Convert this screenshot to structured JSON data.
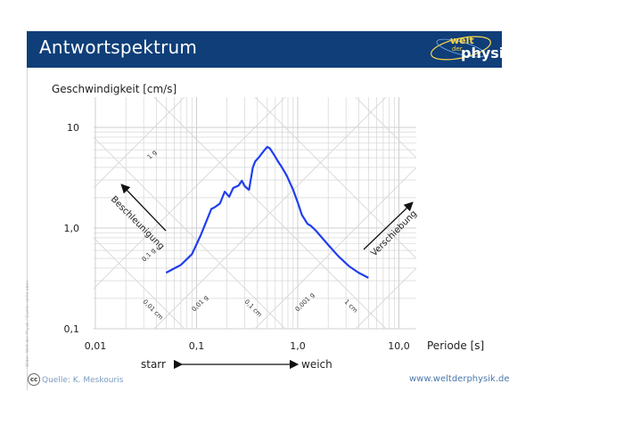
{
  "header": {
    "title": "Antwortspektrum",
    "logo_top": "welt",
    "logo_small": "der",
    "logo_main": "physik"
  },
  "footer": {
    "source": "Quelle: K. Meskouris",
    "website": "www.weltderphysik.de",
    "vertical_credit": "Bilder: Welt der Physik / Quelle: siehe oben",
    "cc_icon": "cc-icon"
  },
  "colors": {
    "banner": "#0f3e78",
    "curve": "#1f3ef0",
    "grid": "#cccccc"
  },
  "chart_data": {
    "type": "line",
    "scale": "tripartite log-log",
    "ylabel": "Geschwindigkeit [cm/s]",
    "xlabel": "Periode [s]",
    "xlim": [
      0.01,
      10
    ],
    "ylim": [
      0.1,
      10
    ],
    "x_ticks": [
      "0,01",
      "0,1",
      "1,0",
      "10,0"
    ],
    "y_ticks": [
      "0,1",
      "1,0",
      "10"
    ],
    "grid": true,
    "annotations": {
      "left_axis_label": "Beschleunigung",
      "right_axis_label": "Verschiebung",
      "stiff": "starr",
      "soft": "weich"
    },
    "diagonal_labels": {
      "acceleration": [
        "1 g",
        "0,1 g",
        "0,01 g"
      ],
      "displacement": [
        "0,01 cm",
        "0,1 cm",
        "1 cm"
      ],
      "other": [
        "0,001 g"
      ]
    },
    "series": [
      {
        "x": [
          0.05,
          0.07,
          0.09,
          0.11,
          0.14,
          0.15,
          0.17,
          0.19,
          0.21,
          0.23,
          0.26,
          0.28,
          0.3,
          0.33,
          0.36,
          0.38,
          0.41,
          0.46,
          0.5,
          0.53,
          0.58,
          0.63,
          0.7,
          0.78,
          0.9,
          1.0,
          1.1,
          1.25,
          1.35,
          1.5,
          1.7,
          2.0,
          2.5,
          3.2,
          4.0,
          5.0
        ],
        "y": [
          0.36,
          0.43,
          0.55,
          0.85,
          1.55,
          1.6,
          1.75,
          2.3,
          2.05,
          2.5,
          2.65,
          2.95,
          2.6,
          2.4,
          4.0,
          4.6,
          5.0,
          5.8,
          6.4,
          6.2,
          5.4,
          4.7,
          4.0,
          3.3,
          2.4,
          1.8,
          1.35,
          1.1,
          1.05,
          0.95,
          0.82,
          0.68,
          0.53,
          0.42,
          0.36,
          0.32
        ]
      }
    ]
  }
}
